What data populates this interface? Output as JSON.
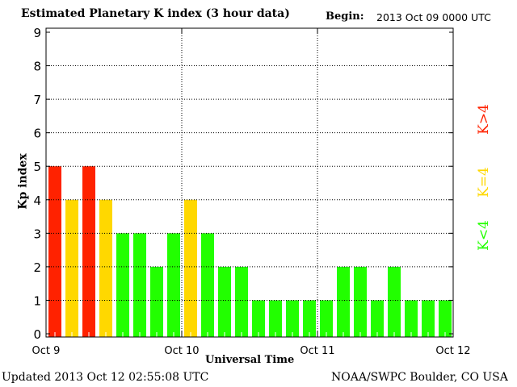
{
  "chart_data": {
    "type": "bar",
    "title": "Estimated Planetary K index (3 hour data)",
    "begin_label": "Begin:",
    "begin_value": "2013 Oct 09 0000 UTC",
    "xlabel": "Universal Time",
    "ylabel": "Kp index",
    "ylim": [
      0,
      9
    ],
    "yticks": [
      "0",
      "1",
      "2",
      "3",
      "4",
      "5",
      "6",
      "7",
      "8",
      "9"
    ],
    "xticks": [
      "Oct 9",
      "Oct 10",
      "Oct 11",
      "Oct 12"
    ],
    "grid": true,
    "values": [
      5,
      4,
      5,
      4,
      3,
      3,
      2,
      3,
      4,
      3,
      2,
      2,
      1,
      1,
      1,
      1,
      1,
      2,
      2,
      1,
      2,
      1,
      1,
      1
    ],
    "colors": {
      "low": "#22ff00",
      "equal": "#ffd800",
      "high": "#ff2200"
    },
    "legend": {
      "high": "K>4",
      "equal": "K=4",
      "low": "K<4"
    },
    "legend_placement": "right"
  },
  "footer": {
    "updated": "Updated 2013 Oct 12 02:55:08 UTC",
    "source": "NOAA/SWPC Boulder, CO USA"
  }
}
